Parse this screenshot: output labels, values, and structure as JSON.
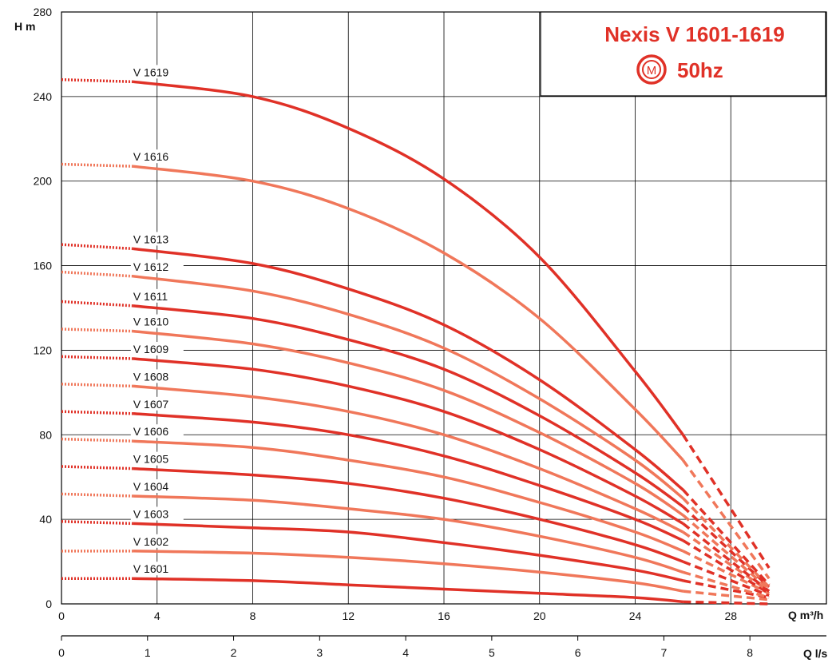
{
  "chart_data": {
    "type": "line",
    "title": "Nexis V 1601-1619",
    "subtitle": "50hz",
    "logo_letter": "M",
    "xlabel": "Q m³/h",
    "xlabel2": "Q l/s",
    "ylabel": "H m",
    "xlim": [
      0,
      32
    ],
    "ylim": [
      0,
      280
    ],
    "x2lim": [
      0,
      8.889
    ],
    "x_ticks": [
      0,
      4,
      8,
      12,
      16,
      20,
      24,
      28
    ],
    "x_tick_labels": [
      "0",
      "4",
      "8",
      "12",
      "16",
      "20",
      "24",
      "28"
    ],
    "x2_ticks": [
      0,
      1,
      2,
      3,
      4,
      5,
      6,
      7,
      8
    ],
    "x2_tick_labels": [
      "0",
      "1",
      "2",
      "3",
      "4",
      "5",
      "6",
      "7",
      "8"
    ],
    "y_ticks": [
      0,
      40,
      80,
      120,
      160,
      200,
      240,
      280
    ],
    "y_tick_labels": [
      "0",
      "40",
      "80",
      "120",
      "160",
      "200",
      "240",
      "280"
    ],
    "grid": true,
    "colors": {
      "dark": "#e03127",
      "light": "#f0775a",
      "grid": "#000000"
    },
    "x": [
      3,
      8,
      12,
      16,
      20,
      24,
      26
    ],
    "series": [
      {
        "name": "V 1601",
        "shade": "dark",
        "h0": 12,
        "values": [
          12,
          11,
          9,
          7,
          5,
          3,
          1
        ],
        "tail_end": 0
      },
      {
        "name": "V 1602",
        "shade": "light",
        "h0": 25,
        "values": [
          25,
          24,
          22,
          19,
          15,
          10,
          6
        ],
        "tail_end": 2
      },
      {
        "name": "V 1603",
        "shade": "dark",
        "h0": 39,
        "values": [
          38,
          36,
          34,
          29,
          23,
          16,
          11
        ],
        "tail_end": 3
      },
      {
        "name": "V 1604",
        "shade": "light",
        "h0": 52,
        "values": [
          51,
          49,
          45,
          40,
          32,
          22,
          15
        ],
        "tail_end": 3
      },
      {
        "name": "V 1605",
        "shade": "dark",
        "h0": 65,
        "values": [
          64,
          61,
          57,
          50,
          40,
          28,
          20
        ],
        "tail_end": 4
      },
      {
        "name": "V 1606",
        "shade": "light",
        "h0": 78,
        "values": [
          77,
          74,
          68,
          60,
          48,
          34,
          25
        ],
        "tail_end": 5
      },
      {
        "name": "V 1607",
        "shade": "dark",
        "h0": 91,
        "values": [
          90,
          86,
          80,
          70,
          56,
          40,
          30
        ],
        "tail_end": 5
      },
      {
        "name": "V 1608",
        "shade": "light",
        "h0": 104,
        "values": [
          103,
          98,
          91,
          80,
          64,
          45,
          34
        ],
        "tail_end": 6
      },
      {
        "name": "V 1609",
        "shade": "dark",
        "h0": 117,
        "values": [
          116,
          111,
          103,
          91,
          73,
          51,
          38
        ],
        "tail_end": 6
      },
      {
        "name": "V 1610",
        "shade": "light",
        "h0": 130,
        "values": [
          129,
          123,
          114,
          101,
          81,
          57,
          42
        ],
        "tail_end": 7
      },
      {
        "name": "V 1611",
        "shade": "dark",
        "h0": 143,
        "values": [
          141,
          135,
          125,
          111,
          89,
          62,
          46
        ],
        "tail_end": 8
      },
      {
        "name": "V 1612",
        "shade": "light",
        "h0": 157,
        "values": [
          155,
          148,
          137,
          121,
          97,
          68,
          50
        ],
        "tail_end": 8
      },
      {
        "name": "V 1613",
        "shade": "dark",
        "h0": 170,
        "values": [
          168,
          161,
          149,
          132,
          106,
          73,
          54
        ],
        "tail_end": 9
      },
      {
        "name": "V 1616",
        "shade": "light",
        "h0": 208,
        "values": [
          207,
          200,
          187,
          166,
          135,
          92,
          68
        ],
        "tail_end": 12
      },
      {
        "name": "V 1619",
        "shade": "dark",
        "h0": 248,
        "values": [
          247,
          240,
          225,
          201,
          164,
          110,
          80
        ],
        "tail_end": 17
      }
    ]
  }
}
